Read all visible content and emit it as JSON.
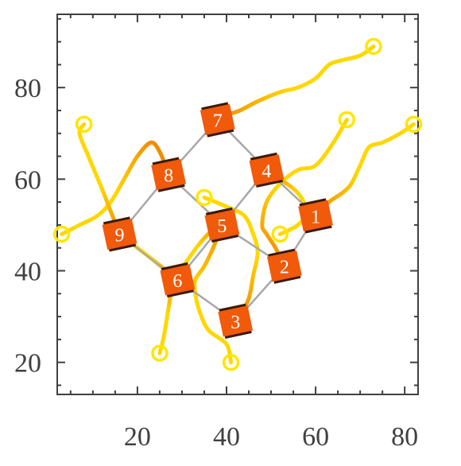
{
  "chart_data": {
    "type": "scatter",
    "title": "",
    "xlabel": "",
    "ylabel": "",
    "xlim": [
      2,
      83
    ],
    "ylim": [
      13,
      96
    ],
    "xticks": [
      20,
      40,
      60,
      80
    ],
    "yticks": [
      20,
      40,
      60,
      80
    ],
    "x_minor_step": 5,
    "y_minor_step": 5,
    "grid": false,
    "colors": {
      "robot_fill": "#f05a0a",
      "robot_edge": "#3a1a08",
      "formation_edge": "#a8a8a8",
      "start_marker": "#ffe600",
      "trail_light": "#ffd700",
      "trail_dark": "#f08c00",
      "axes": "#404040"
    },
    "robots": [
      {
        "id": "1",
        "x": 60,
        "y": 52
      },
      {
        "id": "2",
        "x": 53,
        "y": 41
      },
      {
        "id": "3",
        "x": 42,
        "y": 29
      },
      {
        "id": "4",
        "x": 49,
        "y": 62
      },
      {
        "id": "5",
        "x": 39,
        "y": 50
      },
      {
        "id": "6",
        "x": 29,
        "y": 38
      },
      {
        "id": "7",
        "x": 38,
        "y": 73
      },
      {
        "id": "8",
        "x": 27,
        "y": 61
      },
      {
        "id": "9",
        "x": 16,
        "y": 48
      }
    ],
    "formation_edges": [
      [
        "7",
        "8"
      ],
      [
        "7",
        "4"
      ],
      [
        "8",
        "9"
      ],
      [
        "8",
        "5"
      ],
      [
        "4",
        "5"
      ],
      [
        "4",
        "1"
      ],
      [
        "9",
        "6"
      ],
      [
        "5",
        "6"
      ],
      [
        "5",
        "2"
      ],
      [
        "1",
        "2"
      ],
      [
        "6",
        "3"
      ],
      [
        "2",
        "3"
      ]
    ],
    "start_markers": [
      {
        "x": 73,
        "y": 89
      },
      {
        "x": 82,
        "y": 72
      },
      {
        "x": 67,
        "y": 73
      },
      {
        "x": 52,
        "y": 48
      },
      {
        "x": 35,
        "y": 56
      },
      {
        "x": 8,
        "y": 72
      },
      {
        "x": 3,
        "y": 48
      },
      {
        "x": 25,
        "y": 22
      },
      {
        "x": 41,
        "y": 20
      }
    ],
    "trajectories": [
      {
        "robot": "7",
        "points": [
          [
            73,
            89
          ],
          [
            70,
            87
          ],
          [
            66,
            86
          ],
          [
            63,
            85
          ],
          [
            60,
            82
          ],
          [
            56,
            80
          ],
          [
            52,
            79
          ],
          [
            47,
            77
          ],
          [
            43,
            75
          ],
          [
            40,
            74
          ],
          [
            38,
            73
          ]
        ]
      },
      {
        "robot": "1",
        "points": [
          [
            82,
            72
          ],
          [
            79,
            70
          ],
          [
            75,
            68
          ],
          [
            72,
            67
          ],
          [
            70,
            63
          ],
          [
            68,
            59
          ],
          [
            66,
            57
          ],
          [
            63,
            55
          ],
          [
            60,
            52
          ]
        ]
      },
      {
        "robot": "4",
        "points": [
          [
            67,
            73
          ],
          [
            64,
            68
          ],
          [
            60,
            63
          ],
          [
            56,
            62
          ],
          [
            52,
            59
          ],
          [
            49,
            55
          ],
          [
            48,
            50
          ],
          [
            49,
            48
          ],
          [
            51,
            45
          ],
          [
            53,
            41
          ]
        ]
      },
      {
        "robot": "2",
        "points": [
          [
            52,
            48
          ],
          [
            56,
            50
          ],
          [
            58,
            53
          ],
          [
            56,
            57
          ],
          [
            52,
            60
          ],
          [
            49,
            62
          ]
        ]
      },
      {
        "robot": "5",
        "points": [
          [
            35,
            56
          ],
          [
            40,
            54
          ],
          [
            44,
            52
          ],
          [
            46,
            48
          ],
          [
            47,
            44
          ],
          [
            46,
            39
          ],
          [
            45,
            34
          ],
          [
            43,
            30
          ],
          [
            42,
            29
          ]
        ]
      },
      {
        "robot": "3",
        "points": [
          [
            41,
            20
          ],
          [
            40,
            24
          ],
          [
            36,
            27
          ],
          [
            34,
            31
          ],
          [
            33,
            35
          ],
          [
            33,
            38
          ],
          [
            35,
            41
          ],
          [
            37,
            45
          ],
          [
            39,
            50
          ]
        ]
      },
      {
        "robot": "6",
        "points": [
          [
            25,
            22
          ],
          [
            26,
            26
          ],
          [
            27,
            32
          ],
          [
            28,
            38
          ]
        ]
      },
      {
        "robot": "6b",
        "points": [
          [
            28,
            38
          ],
          [
            31,
            42
          ],
          [
            34,
            46
          ],
          [
            37,
            49
          ],
          [
            39,
            50
          ]
        ]
      },
      {
        "robot": "9",
        "points": [
          [
            3,
            48
          ],
          [
            7,
            50
          ],
          [
            11,
            52
          ],
          [
            14,
            55
          ],
          [
            17,
            60
          ],
          [
            20,
            65
          ],
          [
            23,
            68
          ],
          [
            25,
            66
          ],
          [
            27,
            61
          ]
        ]
      },
      {
        "robot": "8",
        "points": [
          [
            8,
            72
          ],
          [
            7,
            70
          ],
          [
            9,
            65
          ],
          [
            12,
            58
          ],
          [
            14,
            53
          ],
          [
            16,
            48
          ]
        ]
      },
      {
        "robot": "6c",
        "points": [
          [
            16,
            48
          ],
          [
            20,
            45
          ],
          [
            24,
            42
          ],
          [
            29,
            38
          ]
        ]
      }
    ]
  }
}
